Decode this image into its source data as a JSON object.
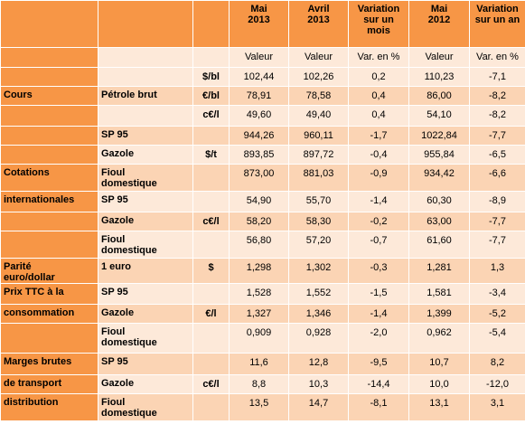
{
  "header": {
    "cols": [
      "",
      "",
      "",
      "Mai\n2013",
      "Avril\n2013",
      "Variation\nsur un\nmois",
      "Mai\n2012",
      "Variation\nsur un an"
    ]
  },
  "subheader": {
    "cols": [
      "",
      "",
      "",
      "Valeur",
      "Valeur",
      "Var. en %",
      "Valeur",
      "Var. en %"
    ]
  },
  "rows": [
    {
      "c0": "",
      "c1": "",
      "c2": "$/bl",
      "v": [
        "102,44",
        "102,26",
        "0,2",
        "110,23",
        "-7,1"
      ]
    },
    {
      "c0": "Cours",
      "c1": "Pétrole brut",
      "c2": "€/bl",
      "v": [
        "78,91",
        "78,58",
        "0,4",
        "86,00",
        "-8,2"
      ]
    },
    {
      "c0": "",
      "c1": "",
      "c2": "c€/l",
      "v": [
        "49,60",
        "49,40",
        "0,4",
        "54,10",
        "-8,2"
      ]
    },
    {
      "c0": "",
      "c1": "SP 95",
      "c2": "",
      "v": [
        "944,26",
        "960,11",
        "-1,7",
        "1022,84",
        "-7,7"
      ]
    },
    {
      "c0": "",
      "c1": "Gazole",
      "c2": "$/t",
      "v": [
        "893,85",
        "897,72",
        "-0,4",
        "955,84",
        "-6,5"
      ]
    },
    {
      "c0": "Cotations",
      "c1": "Fioul\ndomestique",
      "c2": "",
      "v": [
        "873,00",
        "881,03",
        "-0,9",
        "934,42",
        "-6,6"
      ]
    },
    {
      "c0": "internationales",
      "c1": "SP 95",
      "c2": "",
      "v": [
        "54,90",
        "55,70",
        "-1,4",
        "60,30",
        "-8,9"
      ]
    },
    {
      "c0": "",
      "c1": "Gazole",
      "c2": "c€/l",
      "v": [
        "58,20",
        "58,30",
        "-0,2",
        "63,00",
        "-7,7"
      ]
    },
    {
      "c0": "",
      "c1": "Fioul\ndomestique",
      "c2": "",
      "v": [
        "56,80",
        "57,20",
        "-0,7",
        "61,60",
        "-7,7"
      ]
    },
    {
      "c0": "Parité\neuro/dollar",
      "c1": "1 euro",
      "c2": "$",
      "v": [
        "1,298",
        "1,302",
        "-0,3",
        "1,281",
        "1,3"
      ]
    },
    {
      "c0": "Prix TTC à la",
      "c1": "SP 95",
      "c2": "",
      "v": [
        "1,528",
        "1,552",
        "-1,5",
        "1,581",
        "-3,4"
      ]
    },
    {
      "c0": "consommation",
      "c1": "Gazole",
      "c2": "€/l",
      "v": [
        "1,327",
        "1,346",
        "-1,4",
        "1,399",
        "-5,2"
      ]
    },
    {
      "c0": "",
      "c1": "Fioul\ndomestique",
      "c2": "",
      "v": [
        "0,909",
        "0,928",
        "-2,0",
        "0,962",
        "-5,4"
      ]
    },
    {
      "c0": "Marges brutes",
      "c1": "SP 95",
      "c2": "",
      "v": [
        "11,6",
        "12,8",
        "-9,5",
        "10,7",
        "8,2"
      ]
    },
    {
      "c0": "de transport",
      "c1": "Gazole",
      "c2": "c€/l",
      "v": [
        "8,8",
        "10,3",
        "-14,4",
        "10,0",
        "-12,0"
      ]
    },
    {
      "c0": "distribution",
      "c1": "Fioul\ndomestique",
      "c2": "",
      "v": [
        "13,5",
        "14,7",
        "-8,1",
        "13,1",
        "3,1"
      ]
    }
  ]
}
